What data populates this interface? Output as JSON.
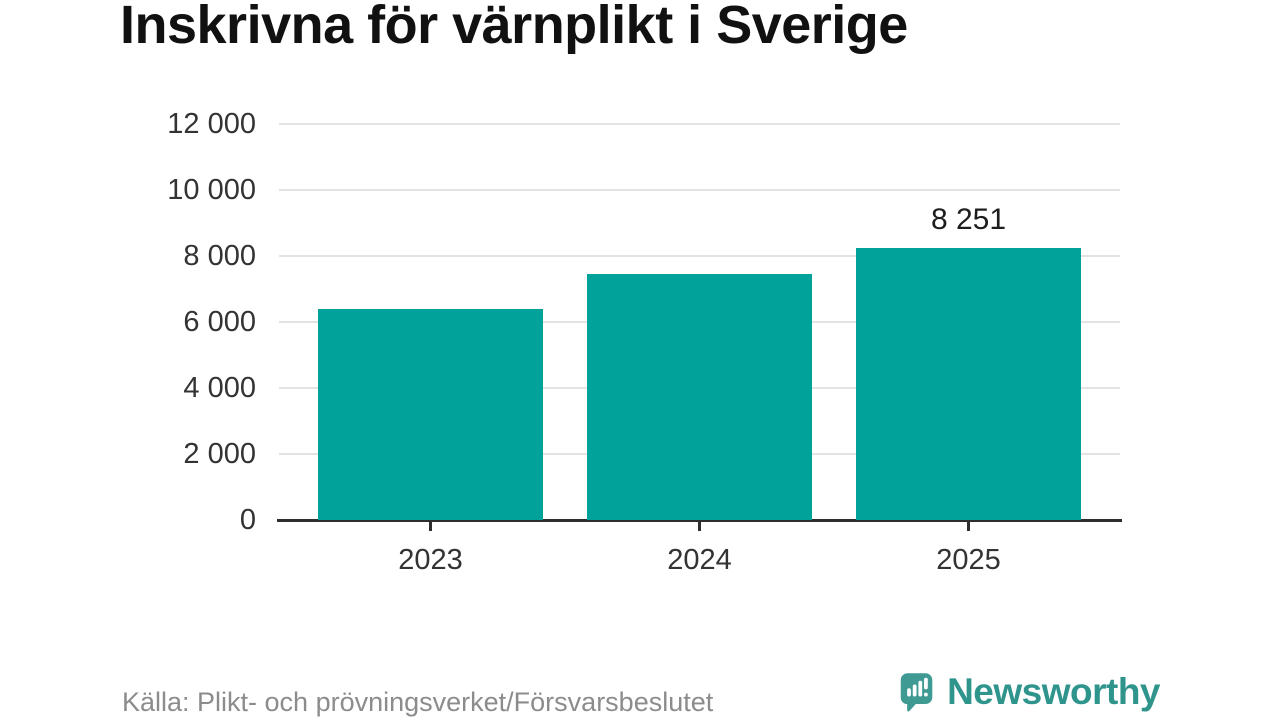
{
  "title": "Inskrivna för värnplikt i Sverige",
  "chart_data": {
    "type": "bar",
    "title": "Inskrivna för värnplikt i Sverige",
    "categories": [
      "2023",
      "2024",
      "2025"
    ],
    "values": [
      6400,
      7450,
      8251
    ],
    "value_labels": [
      null,
      null,
      "8 251"
    ],
    "xlabel": "",
    "ylabel": "",
    "ylim": [
      0,
      12000
    ],
    "yticks": [
      0,
      2000,
      4000,
      6000,
      8000,
      10000,
      12000
    ],
    "ytick_labels": [
      "0",
      "2 000",
      "4 000",
      "6 000",
      "8 000",
      "10 000",
      "12 000"
    ],
    "grid": "horizontal",
    "legend_position": "none",
    "bar_color": "#00a29a"
  },
  "colors": {
    "bar": "#00a29a",
    "axis": "#2e2e2e",
    "gridline": "#e3e3e3",
    "tick_label": "#333333",
    "source_text": "#8c8c8c",
    "brand_teal": "#2e948c",
    "logo_bubble": "#3f9a93"
  },
  "footer": {
    "source": "Källa: Plikt- och prövningsverket/Försvarsbeslutet",
    "brand": "Newsworthy"
  },
  "icons": {
    "logo": "newsworthy-speech-bubble-bar-chart-icon"
  }
}
